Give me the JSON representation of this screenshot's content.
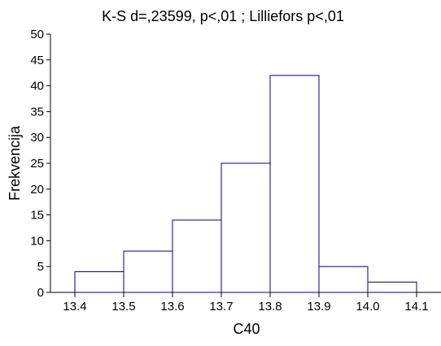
{
  "chart_data": {
    "type": "bar",
    "title": "K-S d=,23599, p<,01 ; Lilliefors p<,01",
    "xlabel": "C40",
    "ylabel": "Frekvencija",
    "bin_edges": [
      13.4,
      13.5,
      13.6,
      13.7,
      13.8,
      13.9,
      14.0,
      14.1
    ],
    "x_tick_labels": [
      "13.4",
      "13.5",
      "13.6",
      "13.7",
      "13.8",
      "13.9",
      "14.0",
      "14.1"
    ],
    "values": [
      4,
      8,
      14,
      25,
      42,
      5,
      2
    ],
    "ylim": [
      0,
      50
    ],
    "y_ticks": [
      0,
      5,
      10,
      15,
      20,
      25,
      30,
      35,
      40,
      45,
      50
    ],
    "grid": false,
    "legend": "none",
    "colors": {
      "bar_stroke": "#000080",
      "bar_fill": "#ffffff",
      "axis": "#000000"
    }
  }
}
